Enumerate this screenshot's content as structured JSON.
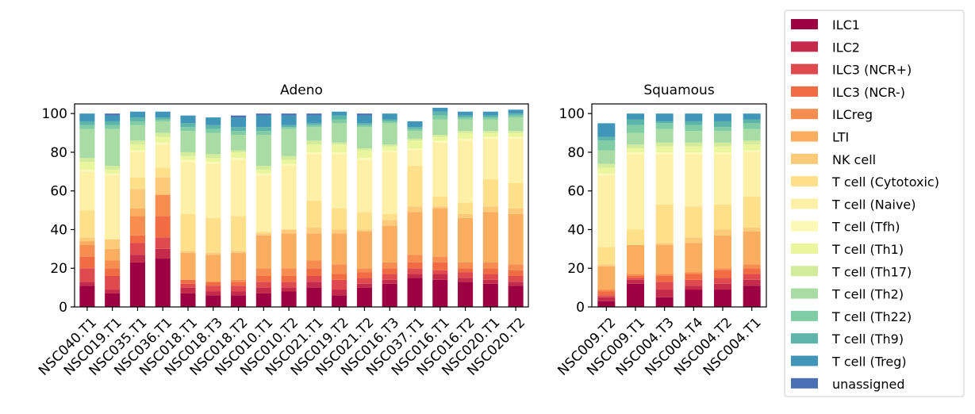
{
  "chart_data": [
    {
      "type": "bar",
      "stacked": true,
      "title": "Adeno",
      "xlabel": "",
      "ylabel": "",
      "ylim": [
        0,
        105
      ],
      "yticks": [
        0,
        20,
        40,
        60,
        80,
        100
      ],
      "grid": false,
      "categories": [
        "NSC040.T1",
        "NSC019.T1",
        "NSC035.T1",
        "NSC036.T1",
        "NSC018.T1",
        "NSC018.T3",
        "NSC018.T2",
        "NSC010.T1",
        "NSC010.T2",
        "NSC021.T1",
        "NSC019.T2",
        "NSC021.T2",
        "NSC016.T3",
        "NSC037.T1",
        "NSC016.T1",
        "NSC016.T2",
        "NSC020.T1",
        "NSC020.T2"
      ],
      "series": [
        {
          "name": "ILC1",
          "values": [
            11,
            7,
            23,
            25,
            7,
            6,
            6,
            7,
            8,
            10,
            6,
            10,
            12,
            15,
            14,
            13,
            12,
            11
          ]
        },
        {
          "name": "ILC2",
          "values": [
            2,
            2,
            4,
            5,
            3,
            2,
            2,
            3,
            2,
            3,
            3,
            2,
            2,
            2,
            3,
            2,
            2,
            2
          ]
        },
        {
          "name": "ILC3 (NCR+)",
          "values": [
            7,
            7,
            6,
            6,
            2,
            3,
            3,
            3,
            3,
            3,
            5,
            3,
            3,
            3,
            2,
            3,
            3,
            3
          ]
        },
        {
          "name": "ILC3 (NCR-)",
          "values": [
            6,
            4,
            4,
            11,
            2,
            2,
            2,
            3,
            3,
            4,
            3,
            3,
            3,
            3,
            4,
            2,
            3,
            3
          ]
        },
        {
          "name": "ILCreg",
          "values": [
            6,
            4,
            10,
            11,
            0,
            0,
            1,
            4,
            4,
            4,
            5,
            2,
            3,
            4,
            3,
            3,
            3,
            3
          ]
        },
        {
          "name": "LTI",
          "values": [
            2,
            6,
            4,
            0,
            14,
            14,
            14,
            17,
            18,
            14,
            16,
            19,
            19,
            22,
            25,
            23,
            26,
            26
          ]
        },
        {
          "name": "NK cell",
          "values": [
            2,
            5,
            10,
            9,
            1,
            1,
            1,
            1,
            2,
            3,
            2,
            1,
            3,
            3,
            1,
            2,
            3,
            3
          ]
        },
        {
          "name": "T cell (Cytotoxic)",
          "values": [
            14,
            0,
            6,
            5,
            19,
            18,
            18,
            1,
            0,
            14,
            11,
            9,
            3,
            21,
            5,
            6,
            14,
            13
          ]
        },
        {
          "name": "T cell (Naive)",
          "values": [
            20,
            33,
            13,
            12,
            27,
            28,
            29,
            29,
            33,
            24,
            28,
            27,
            32,
            8,
            28,
            32,
            21,
            23
          ]
        },
        {
          "name": "T cell (Tfh)",
          "values": [
            1,
            1,
            1,
            1,
            1,
            1,
            1,
            1,
            1,
            1,
            1,
            1,
            1,
            1,
            1,
            1,
            1,
            1
          ]
        },
        {
          "name": "T cell (Th1)",
          "values": [
            4,
            2,
            3,
            3,
            2,
            2,
            3,
            2,
            2,
            4,
            4,
            4,
            2,
            4,
            2,
            3,
            2,
            2
          ]
        },
        {
          "name": "T cell (Th17)",
          "values": [
            2,
            2,
            2,
            2,
            2,
            2,
            1,
            2,
            2,
            2,
            1,
            1,
            1,
            1,
            1,
            1,
            1,
            1
          ]
        },
        {
          "name": "T cell (Th2)",
          "values": [
            15,
            19,
            8,
            6,
            11,
            11,
            8,
            16,
            14,
            7,
            10,
            11,
            11,
            4,
            8,
            6,
            6,
            7
          ]
        },
        {
          "name": "T cell (Th22)",
          "values": [
            2,
            2,
            2,
            1,
            2,
            2,
            2,
            2,
            1,
            1,
            2,
            1,
            1,
            1,
            2,
            1,
            1,
            1
          ]
        },
        {
          "name": "T cell (Th9)",
          "values": [
            2,
            2,
            2,
            1,
            2,
            2,
            2,
            2,
            1,
            1,
            2,
            1,
            1,
            1,
            2,
            1,
            1,
            1
          ]
        },
        {
          "name": "T cell (Treg)",
          "values": [
            4,
            3,
            3,
            3,
            4,
            4,
            5,
            6,
            5,
            4,
            2,
            4,
            3,
            3,
            2,
            2,
            2,
            2
          ]
        },
        {
          "name": "unassigned",
          "values": [
            0,
            1,
            0,
            0,
            0,
            0,
            1,
            1,
            1,
            1,
            0,
            1,
            0,
            0,
            0,
            0,
            0,
            0
          ]
        }
      ]
    },
    {
      "type": "bar",
      "stacked": true,
      "title": "Squamous",
      "xlabel": "",
      "ylabel": "",
      "ylim": [
        0,
        105
      ],
      "yticks": [
        0,
        20,
        40,
        60,
        80,
        100
      ],
      "grid": false,
      "categories": [
        "NSC009.T2",
        "NSC009.T1",
        "NSC004.T3",
        "NSC004.T4",
        "NSC004.T2",
        "NSC004.T1"
      ],
      "series": [
        {
          "name": "ILC1",
          "values": [
            3,
            12,
            5,
            9,
            9,
            11
          ]
        },
        {
          "name": "ILC2",
          "values": [
            2,
            2,
            4,
            2,
            3,
            3
          ]
        },
        {
          "name": "ILC3 (NCR+)",
          "values": [
            1,
            1,
            4,
            3,
            3,
            3
          ]
        },
        {
          "name": "ILC3 (NCR-)",
          "values": [
            2,
            1,
            3,
            3,
            4,
            3
          ]
        },
        {
          "name": "ILCreg",
          "values": [
            1,
            1,
            1,
            1,
            1,
            2
          ]
        },
        {
          "name": "LTI",
          "values": [
            12,
            15,
            15,
            15,
            17,
            17
          ]
        },
        {
          "name": "NK cell",
          "values": [
            1,
            0,
            1,
            3,
            3,
            2
          ]
        },
        {
          "name": "T cell (Cytotoxic)",
          "values": [
            9,
            8,
            20,
            16,
            13,
            16
          ]
        },
        {
          "name": "T cell (Naive)",
          "values": [
            37,
            39,
            26,
            27,
            26,
            23
          ]
        },
        {
          "name": "T cell (Tfh)",
          "values": [
            1,
            1,
            1,
            1,
            1,
            1
          ]
        },
        {
          "name": "T cell (Th1)",
          "values": [
            3,
            2,
            3,
            3,
            3,
            3
          ]
        },
        {
          "name": "T cell (Th17)",
          "values": [
            2,
            2,
            2,
            2,
            2,
            2
          ]
        },
        {
          "name": "T cell (Th2)",
          "values": [
            7,
            6,
            7,
            6,
            6,
            6
          ]
        },
        {
          "name": "T cell (Th22)",
          "values": [
            5,
            4,
            3,
            3,
            2,
            3
          ]
        },
        {
          "name": "T cell (Th9)",
          "values": [
            2,
            3,
            1,
            2,
            3,
            2
          ]
        },
        {
          "name": "T cell (Treg)",
          "values": [
            7,
            3,
            4,
            4,
            4,
            3
          ]
        },
        {
          "name": "unassigned",
          "values": [
            0,
            0,
            0,
            0,
            0,
            0
          ]
        }
      ]
    }
  ],
  "legend": {
    "placement": "right",
    "entries": [
      {
        "label": "ILC1",
        "color": "#9e0142"
      },
      {
        "label": "ILC2",
        "color": "#c42a4a"
      },
      {
        "label": "ILC3 (NCR+)",
        "color": "#df4a4f"
      },
      {
        "label": "ILC3 (NCR-)",
        "color": "#f16c43"
      },
      {
        "label": "ILCreg",
        "color": "#f88d52"
      },
      {
        "label": "LTI",
        "color": "#fbad60"
      },
      {
        "label": "NK cell",
        "color": "#fdca79"
      },
      {
        "label": "T cell (Cytotoxic)",
        "color": "#fee08b"
      },
      {
        "label": "T cell (Naive)",
        "color": "#fef0a7"
      },
      {
        "label": "T cell (Tfh)",
        "color": "#fbf9b5"
      },
      {
        "label": "T cell (Th1)",
        "color": "#eaf69e"
      },
      {
        "label": "T cell (Th17)",
        "color": "#d3ec9c"
      },
      {
        "label": "T cell (Th2)",
        "color": "#a9dca4"
      },
      {
        "label": "T cell (Th22)",
        "color": "#80cca5"
      },
      {
        "label": "T cell (Th9)",
        "color": "#5cb5a8"
      },
      {
        "label": "T cell (Treg)",
        "color": "#3f96b8"
      },
      {
        "label": "unassigned",
        "color": "#4a6fb2"
      }
    ]
  }
}
